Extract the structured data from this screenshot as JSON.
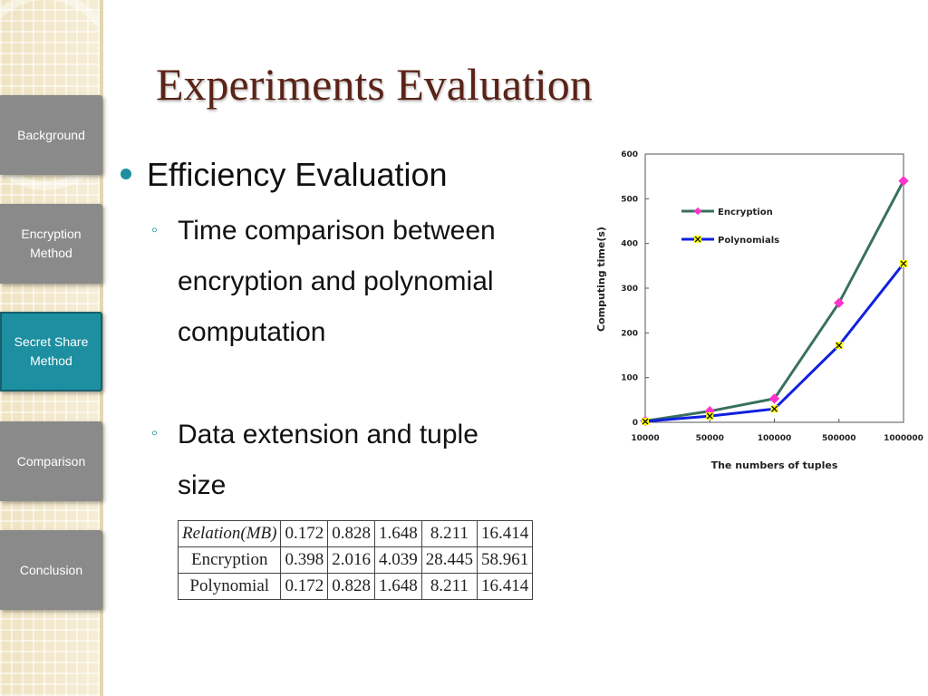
{
  "slide": {
    "title": "Experiments Evaluation"
  },
  "sidebar": {
    "items": [
      {
        "label": "Background",
        "active": false
      },
      {
        "label": "Encryption Method",
        "active": false
      },
      {
        "label": "Secret Share Method",
        "active": true
      },
      {
        "label": "Comparison",
        "active": false
      },
      {
        "label": "Conclusion",
        "active": false
      }
    ]
  },
  "content": {
    "bullet": "Efficiency Evaluation",
    "sub1": "Time comparison between encryption and polynomial computation",
    "sub1_lines": [
      "Time comparison between",
      "encryption and polynomial",
      "computation"
    ],
    "sub2_lines": [
      "Data extension and tuple",
      "size"
    ]
  },
  "table": {
    "header": [
      "Relation(MB)",
      "0.172",
      "0.828",
      "1.648",
      "8.211",
      "16.414"
    ],
    "rows": [
      [
        "Encryption",
        "0.398",
        "2.016",
        "4.039",
        "28.445",
        "58.961"
      ],
      [
        "Polynomial",
        "0.172",
        "0.828",
        "1.648",
        "8.211",
        "16.414"
      ]
    ]
  },
  "colors": {
    "accent": "#1d8fa0",
    "title": "#5a2318",
    "nav": "#8a8a8a",
    "encryption_line": "#3a7060",
    "encryption_marker": "#ff33cc",
    "polynomial_line": "#1020e0",
    "polynomial_marker": "#ffff00"
  },
  "chart_data": {
    "type": "line",
    "categories": [
      "10000",
      "50000",
      "100000",
      "500000",
      "1000000"
    ],
    "series": [
      {
        "name": "Encryption",
        "values": [
          3,
          25,
          53,
          267,
          540
        ]
      },
      {
        "name": "Polynomials",
        "values": [
          2,
          14,
          30,
          172,
          355
        ]
      }
    ],
    "xlabel": "The numbers of tuples",
    "ylabel": "Computing time(s)",
    "ylim": [
      0,
      600
    ],
    "yticks": [
      "0",
      "100",
      "200",
      "300",
      "400",
      "500",
      "600"
    ],
    "legend": "top-left"
  }
}
